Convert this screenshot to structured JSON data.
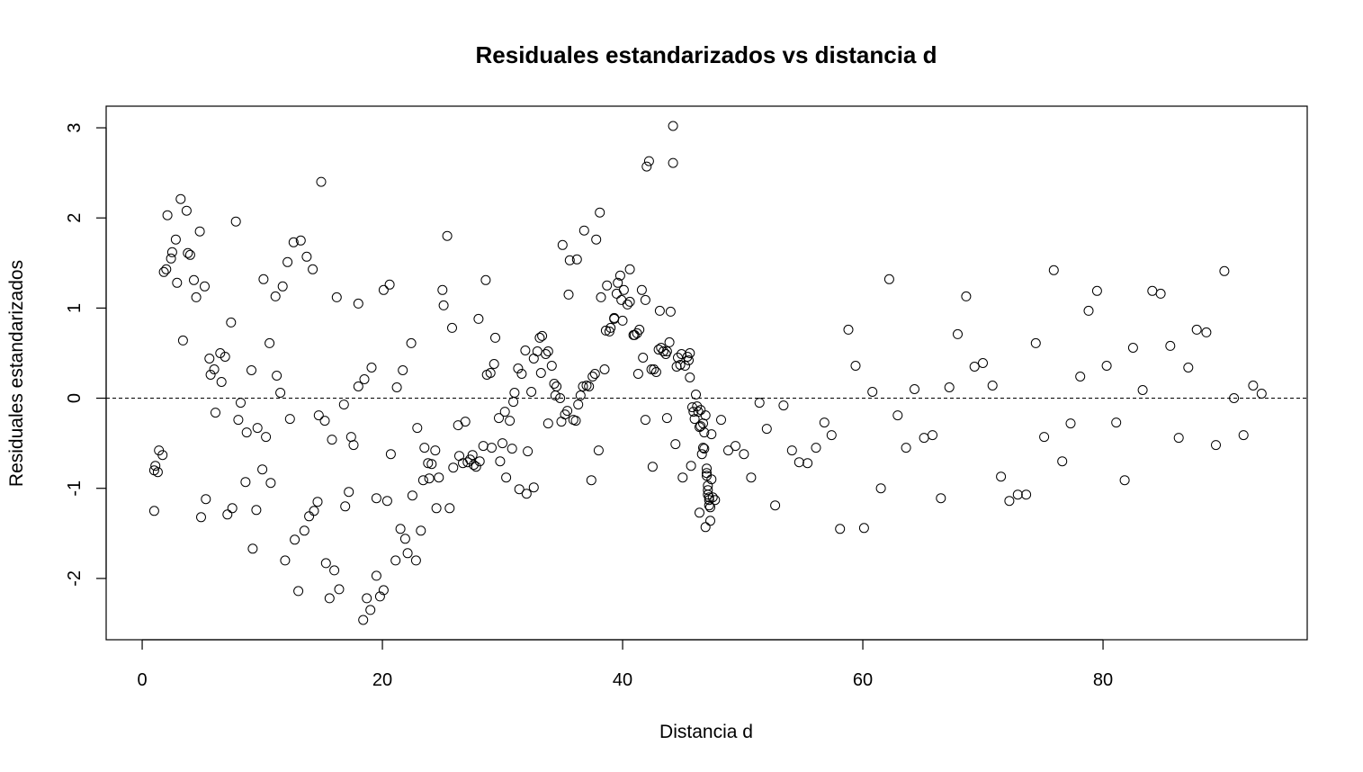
{
  "chart_data": {
    "type": "scatter",
    "title": "Residuales estandarizados vs distancia d",
    "xlabel": "Distancia d",
    "ylabel": "Residuales estandarizados",
    "xlim": [
      -3,
      97
    ],
    "ylim": [
      -2.68,
      3.24
    ],
    "xticks": [
      0,
      20,
      40,
      60,
      80
    ],
    "yticks": [
      -2,
      -1,
      0,
      1,
      2,
      3
    ],
    "reference_line": {
      "y": 0,
      "style": "dashed"
    },
    "marker": "open-circle",
    "grid": false,
    "points": [
      [
        1.0,
        -0.8
      ],
      [
        1.0,
        -1.25
      ],
      [
        1.1,
        -0.75
      ],
      [
        1.3,
        -0.82
      ],
      [
        1.4,
        -0.58
      ],
      [
        1.7,
        -0.63
      ],
      [
        1.8,
        1.4
      ],
      [
        2.0,
        1.43
      ],
      [
        2.1,
        2.03
      ],
      [
        2.4,
        1.55
      ],
      [
        2.5,
        1.62
      ],
      [
        2.8,
        1.76
      ],
      [
        2.9,
        1.28
      ],
      [
        3.2,
        2.21
      ],
      [
        3.4,
        0.64
      ],
      [
        3.7,
        2.08
      ],
      [
        3.8,
        1.61
      ],
      [
        4.0,
        1.59
      ],
      [
        4.3,
        1.31
      ],
      [
        4.5,
        1.12
      ],
      [
        4.8,
        1.85
      ],
      [
        4.9,
        -1.32
      ],
      [
        5.2,
        1.24
      ],
      [
        5.3,
        -1.12
      ],
      [
        5.6,
        0.44
      ],
      [
        5.7,
        0.26
      ],
      [
        6.0,
        0.32
      ],
      [
        6.1,
        -0.16
      ],
      [
        6.5,
        0.5
      ],
      [
        6.6,
        0.18
      ],
      [
        6.9,
        0.46
      ],
      [
        7.1,
        -1.29
      ],
      [
        7.4,
        0.84
      ],
      [
        7.5,
        -1.22
      ],
      [
        7.8,
        1.96
      ],
      [
        8.0,
        -0.24
      ],
      [
        8.2,
        -0.05
      ],
      [
        8.6,
        -0.93
      ],
      [
        8.7,
        -0.38
      ],
      [
        9.1,
        0.31
      ],
      [
        9.2,
        -1.67
      ],
      [
        9.5,
        -1.24
      ],
      [
        9.6,
        -0.33
      ],
      [
        10.0,
        -0.79
      ],
      [
        10.1,
        1.32
      ],
      [
        10.3,
        -0.43
      ],
      [
        10.6,
        0.61
      ],
      [
        10.7,
        -0.94
      ],
      [
        11.1,
        1.13
      ],
      [
        11.2,
        0.25
      ],
      [
        11.5,
        0.06
      ],
      [
        11.7,
        1.24
      ],
      [
        11.9,
        -1.8
      ],
      [
        12.1,
        1.51
      ],
      [
        12.3,
        -0.23
      ],
      [
        12.6,
        1.73
      ],
      [
        12.7,
        -1.57
      ],
      [
        13.0,
        -2.14
      ],
      [
        13.2,
        1.75
      ],
      [
        13.5,
        -1.47
      ],
      [
        13.7,
        1.57
      ],
      [
        13.9,
        -1.31
      ],
      [
        14.2,
        1.43
      ],
      [
        14.3,
        -1.25
      ],
      [
        14.6,
        -1.15
      ],
      [
        14.7,
        -0.19
      ],
      [
        14.9,
        2.4
      ],
      [
        15.2,
        -0.25
      ],
      [
        15.3,
        -1.83
      ],
      [
        15.6,
        -2.22
      ],
      [
        15.8,
        -0.46
      ],
      [
        16.0,
        -1.91
      ],
      [
        16.2,
        1.12
      ],
      [
        16.4,
        -2.12
      ],
      [
        16.8,
        -0.07
      ],
      [
        16.9,
        -1.2
      ],
      [
        17.2,
        -1.04
      ],
      [
        17.4,
        -0.43
      ],
      [
        17.6,
        -0.52
      ],
      [
        18.0,
        1.05
      ],
      [
        18.0,
        0.13
      ],
      [
        18.4,
        -2.46
      ],
      [
        18.5,
        0.21
      ],
      [
        18.7,
        -2.22
      ],
      [
        19.0,
        -2.35
      ],
      [
        19.1,
        0.34
      ],
      [
        19.5,
        -1.97
      ],
      [
        19.5,
        -1.11
      ],
      [
        19.8,
        -2.2
      ],
      [
        20.1,
        -2.13
      ],
      [
        20.1,
        1.2
      ],
      [
        20.4,
        -1.14
      ],
      [
        20.6,
        1.26
      ],
      [
        20.7,
        -0.62
      ],
      [
        21.1,
        -1.8
      ],
      [
        21.2,
        0.12
      ],
      [
        21.5,
        -1.45
      ],
      [
        21.7,
        0.31
      ],
      [
        21.9,
        -1.56
      ],
      [
        22.1,
        -1.72
      ],
      [
        22.4,
        0.61
      ],
      [
        22.5,
        -1.08
      ],
      [
        22.8,
        -1.8
      ],
      [
        22.9,
        -0.33
      ],
      [
        23.2,
        -1.47
      ],
      [
        23.4,
        -0.91
      ],
      [
        23.5,
        -0.55
      ],
      [
        23.8,
        -0.72
      ],
      [
        23.9,
        -0.89
      ],
      [
        24.1,
        -0.73
      ],
      [
        24.4,
        -0.58
      ],
      [
        24.5,
        -1.22
      ],
      [
        24.7,
        -0.88
      ],
      [
        25.0,
        1.2
      ],
      [
        25.1,
        1.03
      ],
      [
        25.4,
        1.8
      ],
      [
        25.6,
        -1.22
      ],
      [
        25.8,
        0.78
      ],
      [
        25.9,
        -0.77
      ],
      [
        26.3,
        -0.3
      ],
      [
        26.4,
        -0.64
      ],
      [
        26.7,
        -0.72
      ],
      [
        26.9,
        -0.26
      ],
      [
        27.1,
        -0.71
      ],
      [
        27.3,
        -0.68
      ],
      [
        27.5,
        -0.63
      ],
      [
        27.6,
        -0.74
      ],
      [
        27.8,
        -0.76
      ],
      [
        28.0,
        0.88
      ],
      [
        28.1,
        -0.7
      ],
      [
        28.4,
        -0.53
      ],
      [
        28.6,
        1.31
      ],
      [
        28.7,
        0.26
      ],
      [
        29.0,
        0.28
      ],
      [
        29.1,
        -0.55
      ],
      [
        29.3,
        0.38
      ],
      [
        29.4,
        0.67
      ],
      [
        29.7,
        -0.22
      ],
      [
        29.8,
        -0.7
      ],
      [
        30.0,
        -0.5
      ],
      [
        30.2,
        -0.15
      ],
      [
        30.3,
        -0.88
      ],
      [
        30.6,
        -0.25
      ],
      [
        30.8,
        -0.56
      ],
      [
        30.9,
        -0.04
      ],
      [
        31.0,
        0.06
      ],
      [
        31.3,
        0.33
      ],
      [
        31.4,
        -1.01
      ],
      [
        31.6,
        0.27
      ],
      [
        31.9,
        0.53
      ],
      [
        32.0,
        -1.06
      ],
      [
        32.1,
        -0.59
      ],
      [
        32.4,
        0.07
      ],
      [
        32.6,
        0.44
      ],
      [
        32.6,
        -0.99
      ],
      [
        32.9,
        0.52
      ],
      [
        33.1,
        0.67
      ],
      [
        33.2,
        0.28
      ],
      [
        33.3,
        0.69
      ],
      [
        33.6,
        0.49
      ],
      [
        33.8,
        0.52
      ],
      [
        33.8,
        -0.28
      ],
      [
        34.1,
        0.36
      ],
      [
        34.3,
        0.16
      ],
      [
        34.4,
        0.03
      ],
      [
        34.5,
        0.13
      ],
      [
        34.8,
        0.0
      ],
      [
        34.9,
        -0.26
      ],
      [
        35.0,
        1.7
      ],
      [
        35.2,
        -0.18
      ],
      [
        35.4,
        -0.14
      ],
      [
        35.5,
        1.15
      ],
      [
        35.6,
        1.53
      ],
      [
        35.9,
        -0.24
      ],
      [
        36.1,
        -0.25
      ],
      [
        36.2,
        1.54
      ],
      [
        36.3,
        -0.07
      ],
      [
        36.5,
        0.03
      ],
      [
        36.7,
        0.13
      ],
      [
        36.8,
        1.86
      ],
      [
        37.0,
        0.14
      ],
      [
        37.2,
        0.13
      ],
      [
        37.4,
        -0.91
      ],
      [
        37.5,
        0.24
      ],
      [
        37.7,
        0.27
      ],
      [
        37.8,
        1.76
      ],
      [
        38.0,
        -0.58
      ],
      [
        38.1,
        2.06
      ],
      [
        38.2,
        1.12
      ],
      [
        38.5,
        0.32
      ],
      [
        38.6,
        0.75
      ],
      [
        38.7,
        1.25
      ],
      [
        38.9,
        0.74
      ],
      [
        39.0,
        0.78
      ],
      [
        39.3,
        0.88
      ],
      [
        39.3,
        0.89
      ],
      [
        39.5,
        1.16
      ],
      [
        39.6,
        1.28
      ],
      [
        39.8,
        1.36
      ],
      [
        39.9,
        1.09
      ],
      [
        40.0,
        0.86
      ],
      [
        40.1,
        1.2
      ],
      [
        40.4,
        1.04
      ],
      [
        40.6,
        1.43
      ],
      [
        40.6,
        1.07
      ],
      [
        40.9,
        0.7
      ],
      [
        41.0,
        0.7
      ],
      [
        41.2,
        0.72
      ],
      [
        41.3,
        0.27
      ],
      [
        41.4,
        0.76
      ],
      [
        41.6,
        1.2
      ],
      [
        41.7,
        0.45
      ],
      [
        41.9,
        -0.24
      ],
      [
        41.9,
        1.09
      ],
      [
        42.0,
        2.57
      ],
      [
        42.2,
        2.63
      ],
      [
        42.4,
        0.32
      ],
      [
        42.5,
        -0.76
      ],
      [
        42.6,
        0.32
      ],
      [
        42.8,
        0.29
      ],
      [
        43.0,
        0.54
      ],
      [
        43.1,
        0.97
      ],
      [
        43.2,
        0.56
      ],
      [
        43.4,
        0.52
      ],
      [
        43.6,
        0.49
      ],
      [
        43.7,
        -0.22
      ],
      [
        43.7,
        0.52
      ],
      [
        43.9,
        0.62
      ],
      [
        44.0,
        0.96
      ],
      [
        44.2,
        2.61
      ],
      [
        44.2,
        3.02
      ],
      [
        44.4,
        -0.51
      ],
      [
        44.5,
        0.35
      ],
      [
        44.6,
        0.45
      ],
      [
        44.8,
        0.37
      ],
      [
        44.9,
        0.49
      ],
      [
        45.0,
        -0.88
      ],
      [
        45.2,
        0.36
      ],
      [
        45.4,
        0.46
      ],
      [
        45.5,
        0.42
      ],
      [
        45.6,
        0.5
      ],
      [
        45.6,
        0.23
      ],
      [
        45.7,
        -0.75
      ],
      [
        45.8,
        -0.1
      ],
      [
        45.9,
        -0.15
      ],
      [
        46.0,
        -0.23
      ],
      [
        46.1,
        0.04
      ],
      [
        46.2,
        -0.09
      ],
      [
        46.3,
        -0.15
      ],
      [
        46.4,
        -1.27
      ],
      [
        46.4,
        -0.32
      ],
      [
        46.5,
        -0.31
      ],
      [
        46.5,
        -0.13
      ],
      [
        46.6,
        -0.62
      ],
      [
        46.7,
        -0.55
      ],
      [
        46.7,
        -0.28
      ],
      [
        46.8,
        -0.56
      ],
      [
        46.8,
        -0.38
      ],
      [
        46.9,
        -0.19
      ],
      [
        46.9,
        -1.43
      ],
      [
        47.0,
        -0.78
      ],
      [
        47.0,
        -0.83
      ],
      [
        47.0,
        -0.86
      ],
      [
        47.1,
        -0.97
      ],
      [
        47.1,
        -1.02
      ],
      [
        47.1,
        -1.07
      ],
      [
        47.2,
        -1.1
      ],
      [
        47.2,
        -1.13
      ],
      [
        47.2,
        -1.19
      ],
      [
        47.3,
        -1.21
      ],
      [
        47.3,
        -1.36
      ],
      [
        47.4,
        -0.4
      ],
      [
        47.4,
        -0.9
      ],
      [
        47.5,
        -1.1
      ],
      [
        47.7,
        -1.13
      ],
      [
        48.2,
        -0.24
      ],
      [
        48.8,
        -0.58
      ],
      [
        49.4,
        -0.53
      ],
      [
        50.1,
        -0.62
      ],
      [
        50.7,
        -0.88
      ],
      [
        51.4,
        -0.05
      ],
      [
        52.0,
        -0.34
      ],
      [
        52.7,
        -1.19
      ],
      [
        53.4,
        -0.08
      ],
      [
        54.1,
        -0.58
      ],
      [
        54.7,
        -0.71
      ],
      [
        55.4,
        -0.72
      ],
      [
        56.1,
        -0.55
      ],
      [
        56.8,
        -0.27
      ],
      [
        57.4,
        -0.41
      ],
      [
        58.1,
        -1.45
      ],
      [
        58.8,
        0.76
      ],
      [
        59.4,
        0.36
      ],
      [
        60.1,
        -1.44
      ],
      [
        60.8,
        0.07
      ],
      [
        61.5,
        -1.0
      ],
      [
        62.2,
        1.32
      ],
      [
        62.9,
        -0.19
      ],
      [
        63.6,
        -0.55
      ],
      [
        64.3,
        0.1
      ],
      [
        65.1,
        -0.44
      ],
      [
        65.8,
        -0.41
      ],
      [
        66.5,
        -1.11
      ],
      [
        67.2,
        0.12
      ],
      [
        67.9,
        0.71
      ],
      [
        68.6,
        1.13
      ],
      [
        69.3,
        0.35
      ],
      [
        70.0,
        0.39
      ],
      [
        70.8,
        0.14
      ],
      [
        71.5,
        -0.87
      ],
      [
        72.2,
        -1.14
      ],
      [
        72.9,
        -1.07
      ],
      [
        73.6,
        -1.07
      ],
      [
        74.4,
        0.61
      ],
      [
        75.1,
        -0.43
      ],
      [
        75.9,
        1.42
      ],
      [
        76.6,
        -0.7
      ],
      [
        77.3,
        -0.28
      ],
      [
        78.1,
        0.24
      ],
      [
        78.8,
        0.97
      ],
      [
        79.5,
        1.19
      ],
      [
        80.3,
        0.36
      ],
      [
        81.1,
        -0.27
      ],
      [
        81.8,
        -0.91
      ],
      [
        82.5,
        0.56
      ],
      [
        83.3,
        0.09
      ],
      [
        84.1,
        1.19
      ],
      [
        84.8,
        1.16
      ],
      [
        85.6,
        0.58
      ],
      [
        86.3,
        -0.44
      ],
      [
        87.1,
        0.34
      ],
      [
        87.8,
        0.76
      ],
      [
        88.6,
        0.73
      ],
      [
        89.4,
        -0.52
      ],
      [
        90.1,
        1.41
      ],
      [
        90.9,
        0.0
      ],
      [
        91.7,
        -0.41
      ],
      [
        92.5,
        0.14
      ],
      [
        93.2,
        0.05
      ]
    ]
  }
}
